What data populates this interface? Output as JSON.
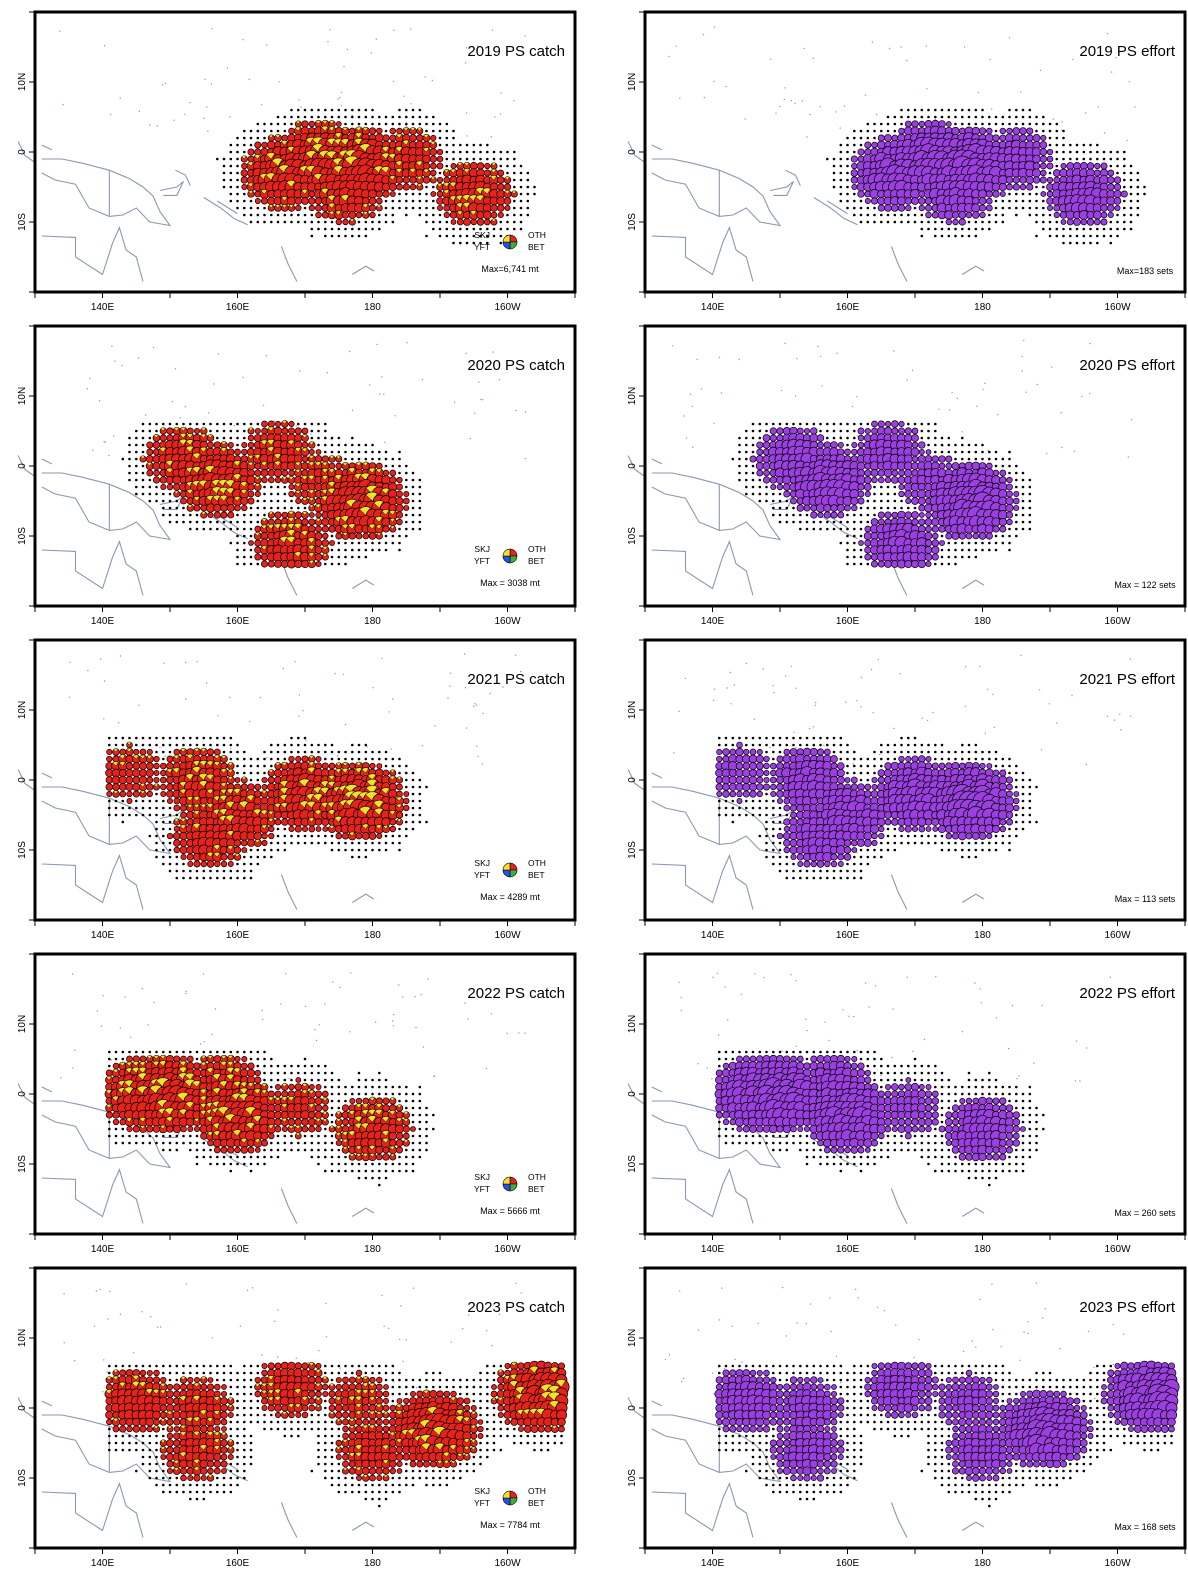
{
  "axes": {
    "x_ticks": [
      "140E",
      "160E",
      "180",
      "160W"
    ],
    "y_ticks": [
      "10N",
      "0",
      "10S"
    ],
    "x_tick_lon": [
      140,
      160,
      180,
      200
    ],
    "y_tick_lat": [
      10,
      0,
      -10
    ],
    "lon_range": [
      130,
      210
    ],
    "lat_range": [
      -20,
      20
    ]
  },
  "colors": {
    "catch_fill": "#e5221b",
    "catch_highlight": "#f2e12b",
    "effort_fill": "#9b3fe0",
    "coast": "#8a9ab0",
    "pie_skj": "#e5221b",
    "pie_yft": "#f2e12b",
    "pie_bet": "#2b4fe0",
    "pie_oth": "#3fae3a"
  },
  "legend": {
    "skj": "SKJ",
    "yft": "YFT",
    "oth": "OTH",
    "bet": "BET"
  },
  "panels": [
    {
      "id": "catch-2019",
      "title": "2019 PS catch",
      "kind": "catch",
      "max": "Max=6,741 mt"
    },
    {
      "id": "effort-2019",
      "title": "2019 PS effort",
      "kind": "effort",
      "max": "Max=183 sets"
    },
    {
      "id": "catch-2020",
      "title": "2020 PS catch",
      "kind": "catch",
      "max": "Max = 3038 mt"
    },
    {
      "id": "effort-2020",
      "title": "2020 PS effort",
      "kind": "effort",
      "max": "Max = 122 sets"
    },
    {
      "id": "catch-2021",
      "title": "2021 PS catch",
      "kind": "catch",
      "max": "Max = 4289 mt"
    },
    {
      "id": "effort-2021",
      "title": "2021 PS effort",
      "kind": "effort",
      "max": "Max = 113 sets"
    },
    {
      "id": "catch-2022",
      "title": "2022 PS catch",
      "kind": "catch",
      "max": "Max = 5666 mt"
    },
    {
      "id": "effort-2022",
      "title": "2022 PS effort",
      "kind": "effort",
      "max": "Max = 260 sets"
    },
    {
      "id": "catch-2023",
      "title": "2023 PS catch",
      "kind": "catch",
      "max": "Max = 7784 mt"
    },
    {
      "id": "effort-2023",
      "title": "2023 PS effort",
      "kind": "effort",
      "max": "Max = 168 sets"
    }
  ],
  "hotspots": [
    [
      [
        -2,
        178,
        1.0
      ],
      [
        -1,
        172,
        0.9
      ],
      [
        -3,
        167,
        0.8
      ],
      [
        -6,
        195,
        0.6
      ],
      [
        -1,
        185,
        0.5
      ],
      [
        -5,
        176,
        0.7
      ]
    ],
    [
      [
        -5,
        178,
        1.0
      ],
      [
        -2,
        157,
        0.8
      ],
      [
        1,
        152,
        0.6
      ],
      [
        -11,
        168,
        0.6
      ],
      [
        2,
        166,
        0.5
      ],
      [
        -2,
        172,
        0.4
      ]
    ],
    [
      [
        -3,
        178,
        1.0
      ],
      [
        -2,
        170,
        0.8
      ],
      [
        0,
        154,
        0.6
      ],
      [
        -5,
        160,
        0.7
      ],
      [
        -8,
        156,
        0.6
      ],
      [
        1,
        144,
        0.4
      ]
    ],
    [
      [
        0,
        150,
        1.0
      ],
      [
        0,
        146,
        0.8
      ],
      [
        -3,
        160,
        0.9
      ],
      [
        -5,
        180,
        0.6
      ],
      [
        1,
        158,
        0.6
      ],
      [
        -2,
        169,
        0.4
      ]
    ],
    [
      [
        2,
        205,
        1.0
      ],
      [
        -3,
        189,
        1.0
      ],
      [
        1,
        145,
        0.6
      ],
      [
        0,
        154,
        0.5
      ],
      [
        -6,
        154,
        0.5
      ],
      [
        3,
        168,
        0.5
      ],
      [
        -6,
        180,
        0.5
      ],
      [
        1,
        178,
        0.4
      ]
    ]
  ]
}
